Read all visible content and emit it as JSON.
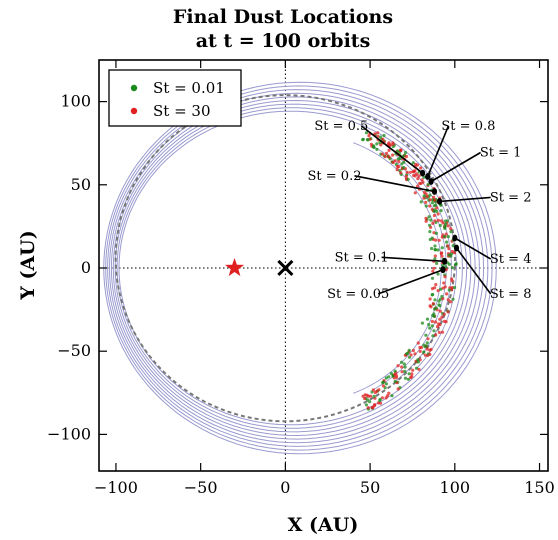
{
  "chart_data": {
    "type": "scatter",
    "title": [
      "Final Dust Locations",
      "at t = 100 orbits"
    ],
    "xlabel": "X (AU)",
    "ylabel": "Y (AU)",
    "xlim": [
      -110,
      155
    ],
    "ylim": [
      -122,
      125
    ],
    "xticks": [
      -100,
      -50,
      0,
      50,
      100,
      150
    ],
    "yticks": [
      -100,
      -50,
      0,
      50,
      100
    ],
    "legend": {
      "position": "top-left",
      "entries": [
        {
          "label": "St = 0.01",
          "color": "#1a8a1a"
        },
        {
          "label": "St = 30",
          "color": "#e02020"
        }
      ]
    },
    "colors": {
      "contour": "#9a9ad0",
      "streamline": "#777777",
      "star": "#e02020",
      "center_marker": "#000000",
      "st001": "#1a8a1a",
      "st30": "#e02020"
    },
    "star": {
      "x": -30,
      "y": 0
    },
    "center_of_mass": {
      "x": 0,
      "y": 0
    },
    "vortex": {
      "center_angle_deg": 0,
      "radius": 100,
      "half_width_deg": 60
    },
    "annotations": [
      {
        "label": "St = 0.5",
        "text_x": 33,
        "text_y": 83,
        "point": {
          "x": 81,
          "y": 57
        }
      },
      {
        "label": "St = 0.8",
        "text_x": 108,
        "text_y": 83,
        "point": {
          "x": 84,
          "y": 55
        }
      },
      {
        "label": "St = 1",
        "text_x": 127,
        "text_y": 67,
        "point": {
          "x": 86,
          "y": 52
        }
      },
      {
        "label": "St = 0.2",
        "text_x": 29,
        "text_y": 53,
        "point": {
          "x": 88,
          "y": 46
        }
      },
      {
        "label": "St = 2",
        "text_x": 133,
        "text_y": 40,
        "point": {
          "x": 91,
          "y": 40
        }
      },
      {
        "label": "St = 4",
        "text_x": 133,
        "text_y": 3,
        "point": {
          "x": 100,
          "y": 18
        }
      },
      {
        "label": "St = 0.1",
        "text_x": 45,
        "text_y": 4,
        "point": {
          "x": 94,
          "y": 4
        }
      },
      {
        "label": "St = 8",
        "text_x": 133,
        "text_y": -18,
        "point": {
          "x": 101,
          "y": 12
        }
      },
      {
        "label": "St = 0.05",
        "text_x": 43,
        "text_y": -18,
        "point": {
          "x": 93,
          "y": -1
        }
      }
    ]
  }
}
